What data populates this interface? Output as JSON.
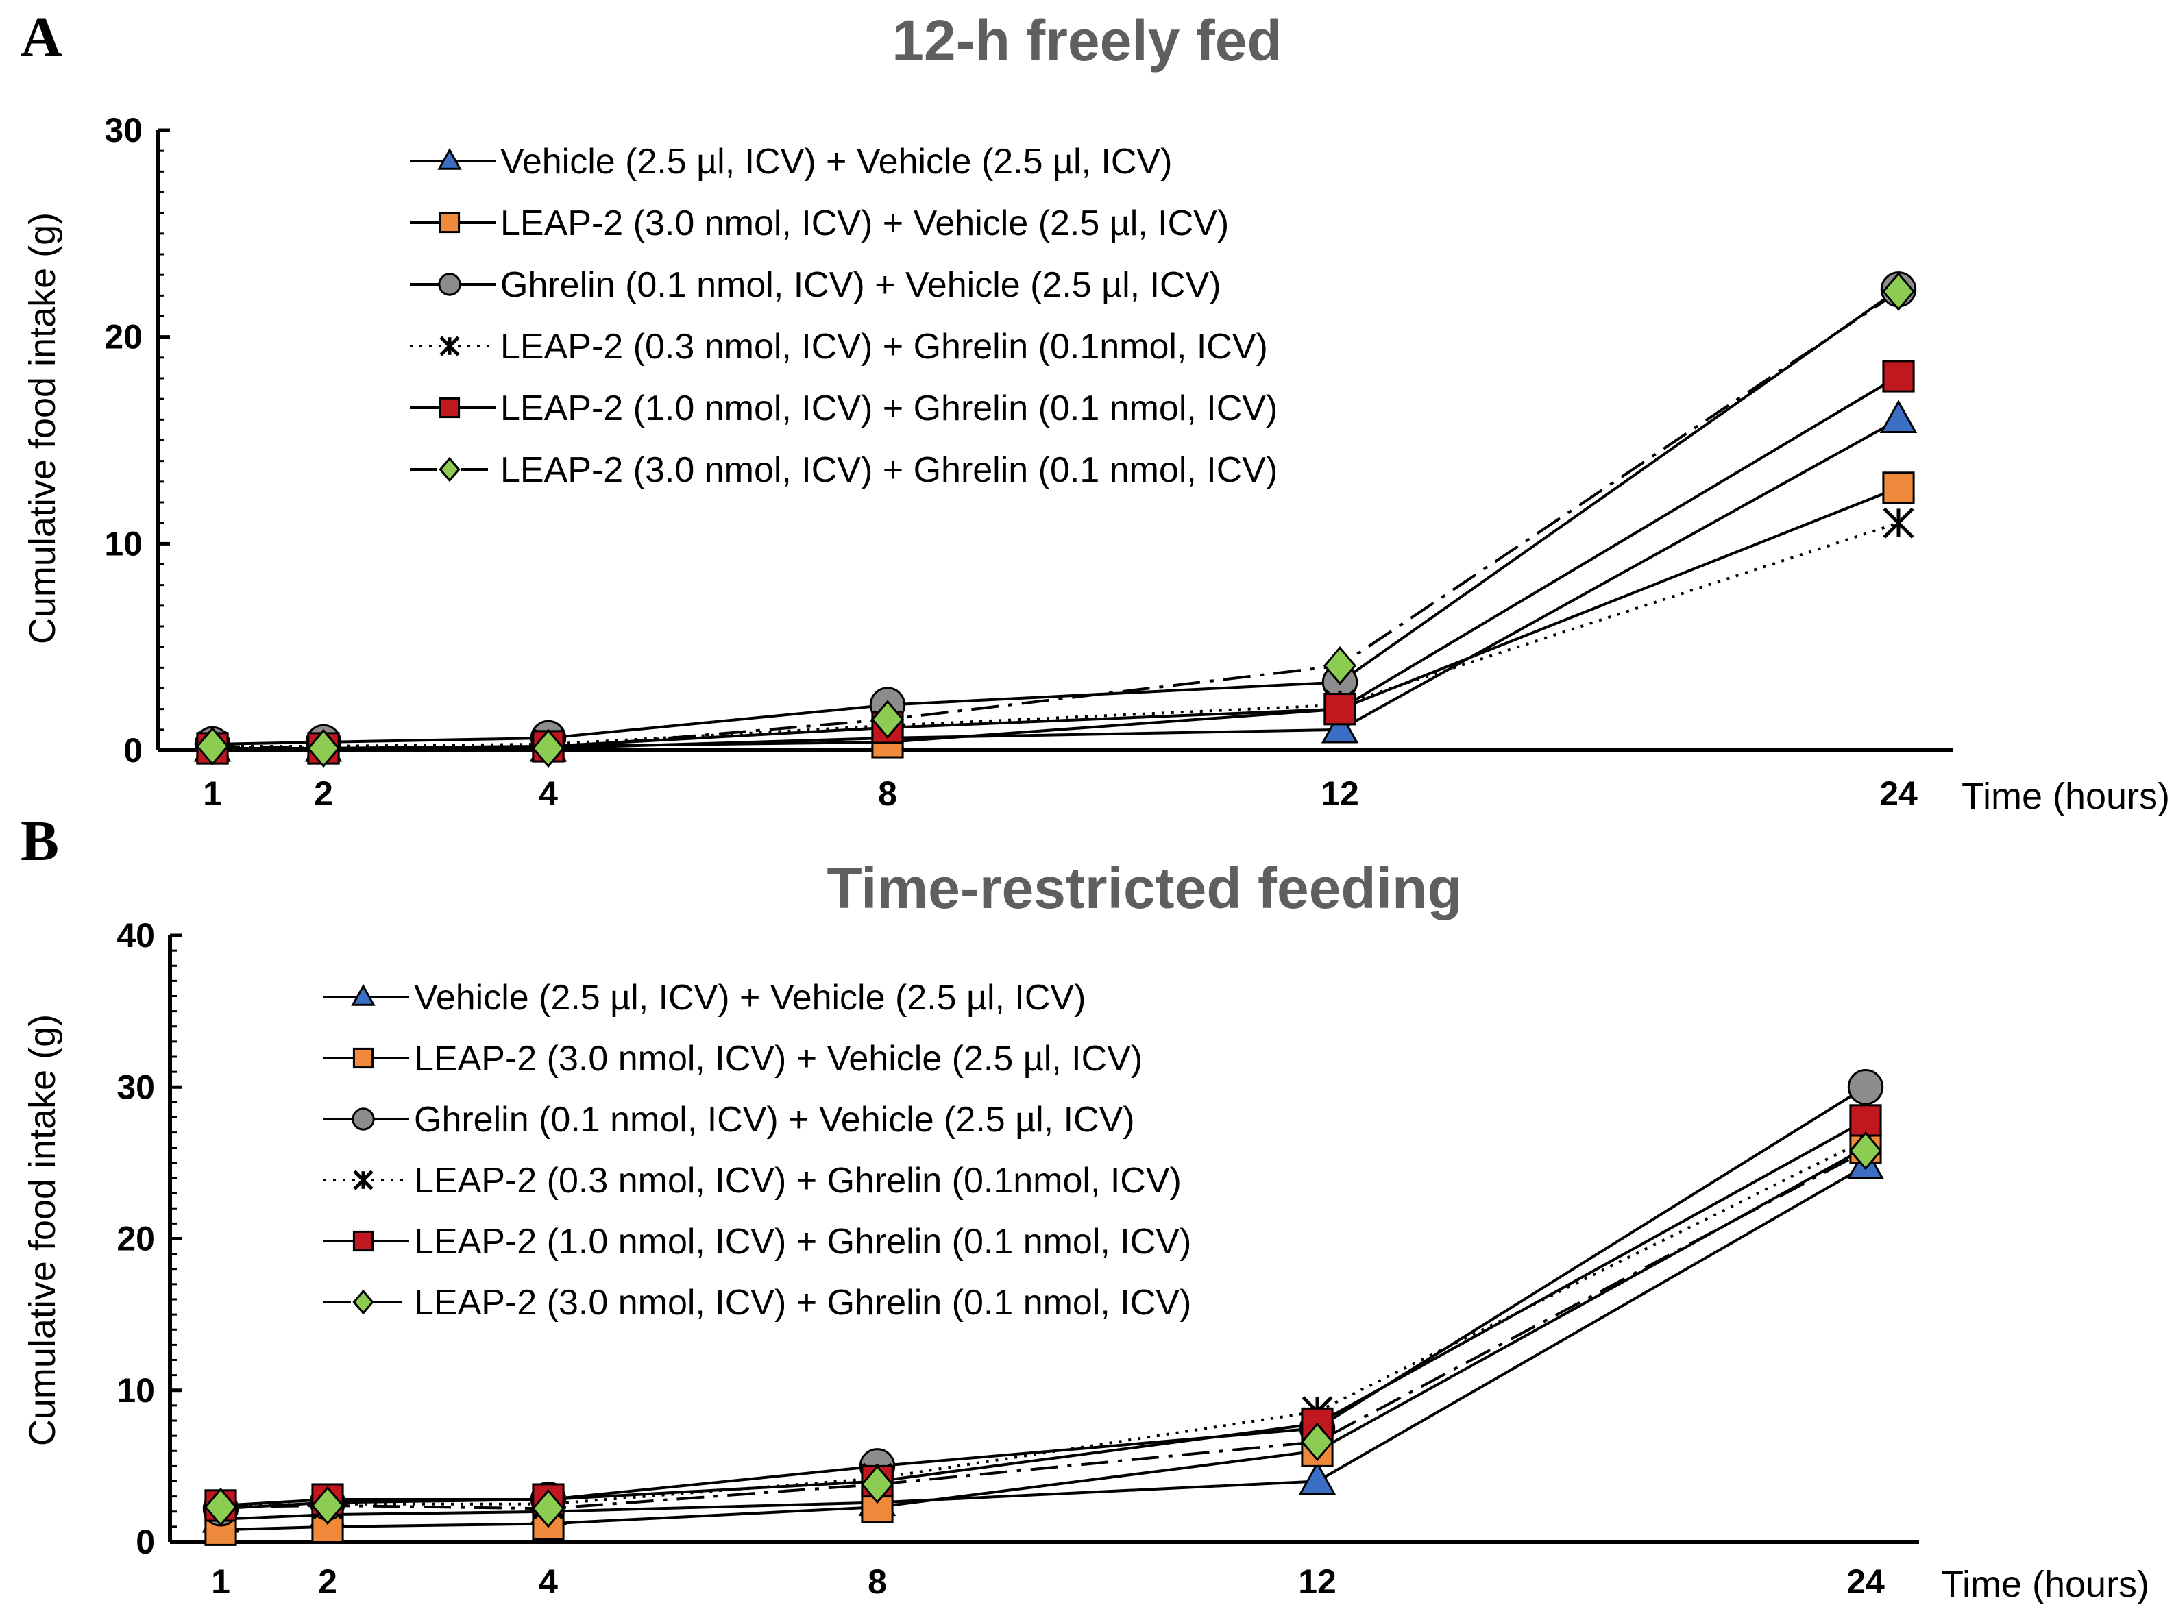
{
  "chart_data": [
    {
      "panel": "A",
      "type": "line",
      "title": "12-h freely fed",
      "xlabel": "Time (hours)",
      "ylabel": "Cumulative food intake (g)",
      "ylim": [
        0,
        30
      ],
      "yticks": [
        "0",
        "10",
        "20",
        "30"
      ],
      "categories": [
        "1",
        "2",
        "4",
        "8",
        "12",
        "24"
      ],
      "x": [
        1,
        2,
        4,
        8,
        12,
        24
      ],
      "legend": "top-center",
      "series": [
        {
          "name": "Vehicle (2.5 µl, ICV) + Vehicle (2.5 µl, ICV)",
          "marker": "triangle",
          "color": "#3a6fc4",
          "dash": "solid",
          "values": [
            0.1,
            0.1,
            0.1,
            0.6,
            1.0,
            16.0
          ]
        },
        {
          "name": "LEAP-2 (3.0 nmol, ICV) + Vehicle (2.5 µl, ICV)",
          "marker": "square",
          "color": "#ef8a3c",
          "dash": "solid",
          "values": [
            0.1,
            0.1,
            0.2,
            0.4,
            2.0,
            12.7
          ]
        },
        {
          "name": "Ghrelin (0.1 nmol, ICV) + Vehicle (2.5 µl, ICV)",
          "marker": "circle",
          "color": "#8c8c8c",
          "dash": "solid",
          "values": [
            0.3,
            0.4,
            0.6,
            2.2,
            3.3,
            22.3
          ]
        },
        {
          "name": "LEAP-2 (0.3 nmol, ICV) + Ghrelin (0.1nmol, ICV)",
          "marker": "star",
          "color": "#000000",
          "dash": "dotted",
          "values": [
            0.2,
            0.2,
            0.3,
            1.2,
            2.2,
            11.0
          ]
        },
        {
          "name": "LEAP-2 (1.0 nmol, ICV) + Ghrelin (0.1 nmol, ICV)",
          "marker": "square",
          "color": "#c0181e",
          "dash": "solid",
          "values": [
            0.1,
            0.1,
            0.2,
            1.1,
            2.0,
            18.1
          ]
        },
        {
          "name": "LEAP-2 (3.0 nmol, ICV) + Ghrelin (0.1 nmol, ICV)",
          "marker": "diamond",
          "color": "#8ccc52",
          "dash": "dashdot",
          "values": [
            0.2,
            0.1,
            0.1,
            1.5,
            4.1,
            22.2
          ]
        }
      ]
    },
    {
      "panel": "B",
      "type": "line",
      "title": "Time-restricted feeding",
      "xlabel": "Time (hours)",
      "ylabel": "Cumulative food intake (g)",
      "ylim": [
        0,
        40
      ],
      "yticks": [
        "0",
        "10",
        "20",
        "30",
        "40"
      ],
      "categories": [
        "1",
        "2",
        "4",
        "8",
        "12",
        "24"
      ],
      "x": [
        1,
        2,
        4,
        8,
        12,
        24
      ],
      "legend": "top-center",
      "series": [
        {
          "name": "Vehicle (2.5 µl, ICV) + Vehicle (2.5 µl, ICV)",
          "marker": "triangle",
          "color": "#3a6fc4",
          "dash": "solid",
          "values": [
            1.5,
            1.8,
            2.0,
            2.6,
            4.0,
            24.8
          ]
        },
        {
          "name": "LEAP-2 (3.0 nmol, ICV) + Vehicle (2.5 µl, ICV)",
          "marker": "square",
          "color": "#ef8a3c",
          "dash": "solid",
          "values": [
            0.8,
            1.0,
            1.2,
            2.3,
            6.0,
            26.0
          ]
        },
        {
          "name": "Ghrelin (0.1 nmol, ICV) + Vehicle (2.5 µl, ICV)",
          "marker": "circle",
          "color": "#8c8c8c",
          "dash": "solid",
          "values": [
            2.2,
            2.6,
            2.8,
            5.0,
            7.5,
            30.0
          ]
        },
        {
          "name": "LEAP-2 (0.3 nmol, ICV) + Ghrelin (0.1nmol, ICV)",
          "marker": "star",
          "color": "#000000",
          "dash": "dotted",
          "values": [
            2.4,
            2.5,
            2.5,
            4.2,
            8.6,
            26.5
          ]
        },
        {
          "name": "LEAP-2 (1.0 nmol, ICV) + Ghrelin (0.1 nmol, ICV)",
          "marker": "square",
          "color": "#c0181e",
          "dash": "solid",
          "values": [
            2.4,
            2.8,
            2.8,
            4.0,
            7.8,
            27.8
          ]
        },
        {
          "name": "LEAP-2 (3.0 nmol, ICV) + Ghrelin (0.1 nmol, ICV)",
          "marker": "diamond",
          "color": "#8ccc52",
          "dash": "dashdot",
          "values": [
            2.3,
            2.4,
            2.2,
            3.8,
            6.6,
            25.8
          ]
        }
      ]
    }
  ]
}
